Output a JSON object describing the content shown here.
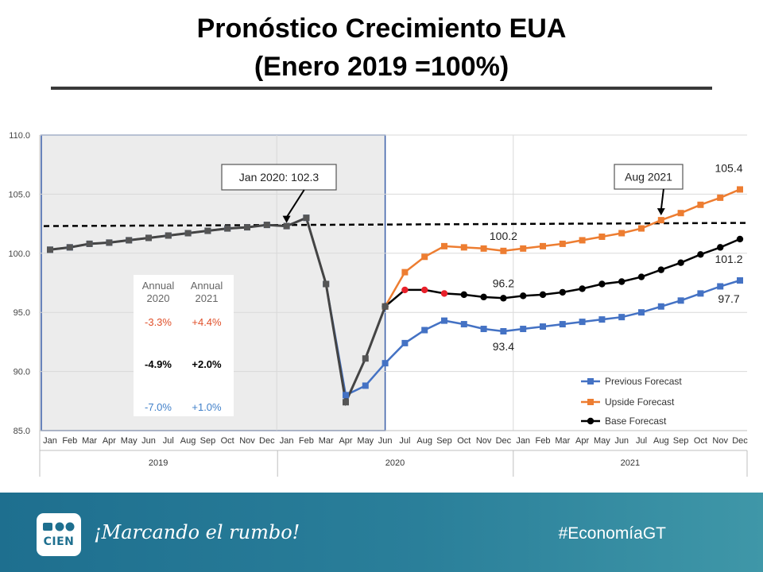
{
  "title": {
    "line1": "Pronóstico Crecimiento EUA",
    "line2": "(Enero 2019 =100%)"
  },
  "chart_data": {
    "type": "line",
    "y_ticks": [
      "85.0",
      "90.0",
      "95.0",
      "100.0",
      "105.0",
      "110.0"
    ],
    "ylim": [
      85,
      110
    ],
    "months": [
      "Jan",
      "Feb",
      "Mar",
      "Apr",
      "May",
      "Jun",
      "Jul",
      "Aug",
      "Sep",
      "Oct",
      "Nov",
      "Dec",
      "Jan",
      "Feb",
      "Mar",
      "Apr",
      "May",
      "Jun",
      "Jul",
      "Aug",
      "Sep",
      "Oct",
      "Nov",
      "Dec",
      "Jan",
      "Feb",
      "Mar",
      "Apr",
      "May",
      "Jun",
      "Jul",
      "Aug",
      "Sep",
      "Oct",
      "Nov",
      "Dec"
    ],
    "years": [
      "2019",
      "2020",
      "2021"
    ],
    "reference_line": 102.3,
    "series": [
      {
        "name": "Previous Forecast",
        "color": "#4472c4",
        "values": [
          100.3,
          100.5,
          100.8,
          100.9,
          101.1,
          101.3,
          101.5,
          101.7,
          101.9,
          102.1,
          102.2,
          102.4,
          102.3,
          103.0,
          97.4,
          88.0,
          88.8,
          90.7,
          92.4,
          93.5,
          94.3,
          94.0,
          93.6,
          93.4,
          93.6,
          93.8,
          94.0,
          94.2,
          94.4,
          94.6,
          95.0,
          95.5,
          96.0,
          96.6,
          97.2,
          97.7
        ]
      },
      {
        "name": "Upside Forecast",
        "color": "#ed7d31",
        "values": [
          null,
          null,
          null,
          null,
          null,
          null,
          null,
          null,
          null,
          null,
          null,
          null,
          null,
          null,
          null,
          null,
          null,
          95.5,
          98.4,
          99.7,
          100.6,
          100.5,
          100.4,
          100.2,
          100.4,
          100.6,
          100.8,
          101.1,
          101.4,
          101.7,
          102.1,
          102.8,
          103.4,
          104.1,
          104.7,
          105.4
        ]
      },
      {
        "name": "Base Forecast",
        "color": "#000000",
        "values": [
          null,
          null,
          null,
          null,
          null,
          null,
          null,
          null,
          null,
          null,
          null,
          null,
          null,
          null,
          null,
          null,
          null,
          95.5,
          96.9,
          96.9,
          96.6,
          96.5,
          96.3,
          96.2,
          96.4,
          96.5,
          96.7,
          97.0,
          97.4,
          97.6,
          98.0,
          98.6,
          99.2,
          99.9,
          100.5,
          101.2
        ]
      }
    ],
    "historical_dark": [
      100.3,
      100.5,
      100.8,
      100.9,
      101.1,
      101.3,
      101.5,
      101.7,
      101.9,
      102.1,
      102.2,
      102.4,
      102.3,
      103.0,
      97.4,
      87.4,
      91.1,
      95.5
    ],
    "red_points": [
      18,
      19,
      20
    ],
    "point_labels": [
      "100.2",
      "96.2",
      "93.4",
      "105.4",
      "101.2",
      "97.7"
    ],
    "callouts": [
      "Jan 2020: 102.3",
      "Aug 2021"
    ],
    "legend": [
      "Previous Forecast",
      "Upside Forecast",
      "Base Forecast"
    ],
    "legend_position": "bottom-right",
    "annual_table": {
      "headers": [
        "Annual\n2020",
        "Annual\n2021"
      ],
      "rows": [
        {
          "color": "#e0502a",
          "values": [
            "-3.3%",
            "+4.4%"
          ]
        },
        {
          "color": "#000000",
          "values": [
            "-4.9%",
            "+2.0%"
          ]
        },
        {
          "color": "#3f7fc9",
          "values": [
            "-7.0%",
            "+1.0%"
          ]
        }
      ]
    }
  },
  "footer": {
    "logo_text": "CIEN",
    "slogan": "¡Marcando el rumbo!",
    "hashtag": "#EconomíaGT"
  }
}
